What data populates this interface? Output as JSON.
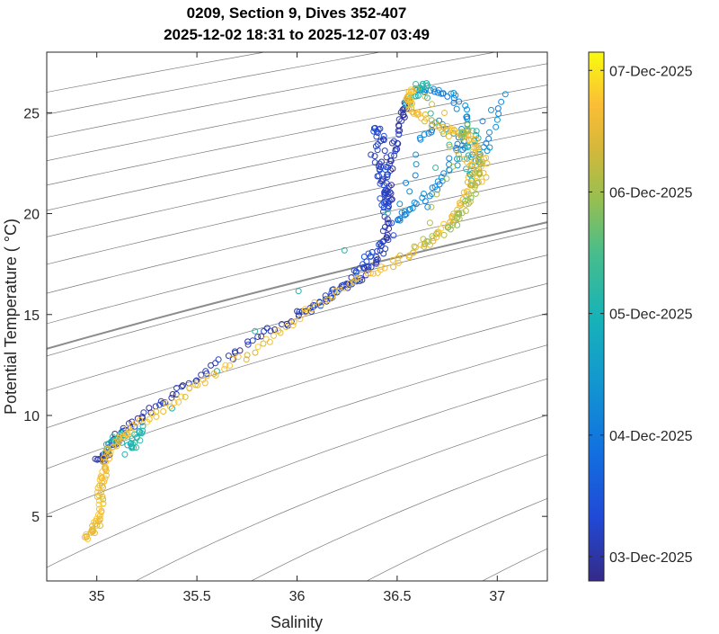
{
  "chart_data": {
    "type": "scatter",
    "title": [
      "0209, Section 9, Dives 352-407",
      "2025-12-02 18:31 to 2025-12-07 03:49"
    ],
    "xlabel": "Salinity",
    "ylabel": "Potential Temperature ( °C)",
    "xlim": [
      34.75,
      37.25
    ],
    "ylim": [
      1.8,
      28
    ],
    "xticks": [
      "35",
      "35.5",
      "36",
      "36.5",
      "37"
    ],
    "xtick_values": [
      35,
      35.5,
      36,
      36.5,
      37
    ],
    "yticks": [
      "5",
      "10",
      "15",
      "20",
      "25"
    ],
    "ytick_values": [
      5,
      10,
      15,
      20,
      25
    ],
    "grid": false,
    "background_contours": "density isopycnals (gray), one highlighted darker",
    "marker": "open circle",
    "colormap": "parula",
    "colorbar": {
      "label_dates": [
        "03-Dec-2025",
        "04-Dec-2025",
        "05-Dec-2025",
        "06-Dec-2025",
        "07-Dec-2025"
      ],
      "range_days": [
        -0.2,
        4.15
      ]
    },
    "series": [
      {
        "color_day": 0.05,
        "points": [
          [
            35.01,
            7.7
          ],
          [
            35.03,
            7.9
          ],
          [
            35.05,
            8.2
          ],
          [
            35.08,
            8.6
          ],
          [
            35.12,
            9.1
          ],
          [
            35.2,
            9.7
          ],
          [
            35.3,
            10.4
          ],
          [
            35.42,
            11.3
          ],
          [
            35.58,
            12.4
          ],
          [
            35.75,
            13.5
          ],
          [
            35.9,
            14.4
          ],
          [
            36.05,
            15.2
          ],
          [
            36.18,
            16.0
          ],
          [
            36.3,
            16.8
          ],
          [
            36.38,
            17.5
          ],
          [
            36.43,
            18.4
          ],
          [
            36.45,
            19.5
          ],
          [
            36.46,
            20.8
          ],
          [
            36.47,
            22.0
          ],
          [
            36.48,
            23.0
          ],
          [
            36.5,
            24.0
          ],
          [
            36.53,
            25.0
          ],
          [
            36.55,
            25.6
          ]
        ]
      },
      {
        "color_day": 0.25,
        "points": [
          [
            36.4,
            22.5
          ],
          [
            36.42,
            21.5
          ],
          [
            36.44,
            20.3
          ],
          [
            36.45,
            21.2
          ],
          [
            36.43,
            23.5
          ],
          [
            36.4,
            24.3
          ],
          [
            36.38,
            22.8
          ],
          [
            36.47,
            19.0
          ],
          [
            36.36,
            18.0
          ],
          [
            36.32,
            17.2
          ],
          [
            36.25,
            16.5
          ],
          [
            36.15,
            15.8
          ],
          [
            36.0,
            15.0
          ]
        ]
      },
      {
        "color_day": 1.2,
        "points": [
          [
            36.6,
            26.1
          ],
          [
            36.7,
            26.0
          ],
          [
            36.78,
            25.9
          ],
          [
            36.85,
            24.8
          ],
          [
            36.82,
            23.6
          ],
          [
            36.75,
            22.0
          ],
          [
            36.65,
            21.0
          ],
          [
            36.55,
            20.1
          ],
          [
            36.5,
            19.6
          ],
          [
            36.62,
            23.5
          ],
          [
            36.7,
            24.6
          ],
          [
            36.9,
            22.7
          ],
          [
            36.95,
            23.4
          ],
          [
            37.03,
            25.9
          ],
          [
            36.65,
            20.5
          ]
        ]
      },
      {
        "color_day": 2.1,
        "points": [
          [
            35.04,
            8.3
          ],
          [
            35.08,
            8.7
          ],
          [
            35.12,
            9.0
          ],
          [
            35.18,
            8.4
          ],
          [
            35.22,
            9.4
          ],
          [
            35.15,
            8.2
          ],
          [
            36.9,
            24.2
          ],
          [
            36.85,
            22.8
          ],
          [
            36.88,
            21.5
          ],
          [
            36.6,
            26.2
          ],
          [
            36.64,
            26.4
          ],
          [
            36.55,
            25.5
          ],
          [
            36.58,
            25.8
          ]
        ]
      },
      {
        "color_day": 3.6,
        "points": [
          [
            34.95,
            4.0
          ],
          [
            34.97,
            4.2
          ],
          [
            35.0,
            4.6
          ],
          [
            35.01,
            5.2
          ],
          [
            35.02,
            5.8
          ],
          [
            35.02,
            6.5
          ],
          [
            35.03,
            7.0
          ],
          [
            35.04,
            7.6
          ],
          [
            35.06,
            8.3
          ],
          [
            35.1,
            8.8
          ],
          [
            35.18,
            9.4
          ],
          [
            35.3,
            10.2
          ],
          [
            35.45,
            11.2
          ],
          [
            35.6,
            12.1
          ],
          [
            35.78,
            13.2
          ],
          [
            35.95,
            14.4
          ],
          [
            36.12,
            15.6
          ],
          [
            36.3,
            16.7
          ],
          [
            36.45,
            17.4
          ],
          [
            36.58,
            18.0
          ],
          [
            36.68,
            18.8
          ],
          [
            36.75,
            19.5
          ],
          [
            36.8,
            20.2
          ],
          [
            36.84,
            21.0
          ],
          [
            36.88,
            22.0
          ],
          [
            36.9,
            23.0
          ],
          [
            36.88,
            23.6
          ],
          [
            36.82,
            24.0
          ],
          [
            36.72,
            24.3
          ],
          [
            36.62,
            24.8
          ],
          [
            36.57,
            25.3
          ],
          [
            36.56,
            25.8
          ],
          [
            36.58,
            26.2
          ],
          [
            36.95,
            22.8
          ],
          [
            36.92,
            21.6
          ],
          [
            36.72,
            24.0
          ]
        ]
      },
      {
        "color_day": 3.0,
        "points": [
          [
            36.92,
            22.8
          ],
          [
            36.9,
            21.8
          ],
          [
            36.87,
            20.8
          ],
          [
            36.82,
            20.0
          ],
          [
            36.76,
            19.3
          ],
          [
            36.6,
            18.2
          ],
          [
            36.82,
            23.8
          ],
          [
            36.86,
            24.3
          ]
        ]
      }
    ]
  }
}
